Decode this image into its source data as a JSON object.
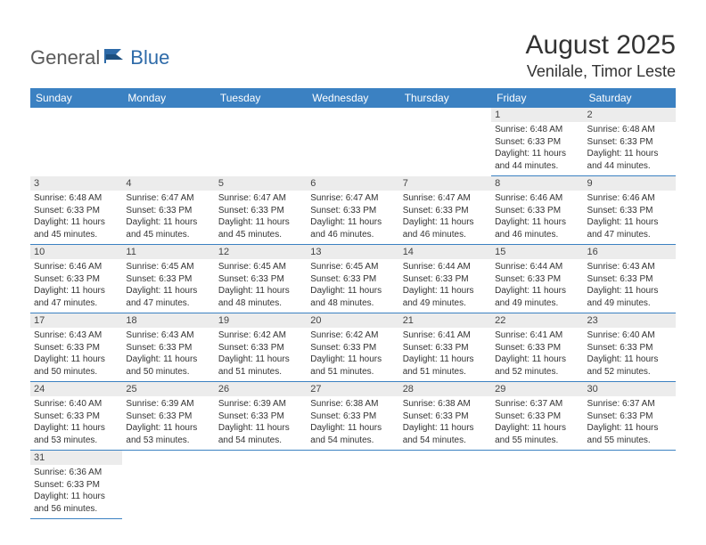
{
  "brand": {
    "part1": "General",
    "part2": "Blue"
  },
  "title": "August 2025",
  "location": "Venilale, Timor Leste",
  "headerColor": "#3b81c2",
  "dayHeaderBg": "#ececec",
  "days": [
    "Sunday",
    "Monday",
    "Tuesday",
    "Wednesday",
    "Thursday",
    "Friday",
    "Saturday"
  ],
  "weeks": [
    [
      {
        "n": "",
        "sr": "",
        "ss": "",
        "dl": ""
      },
      {
        "n": "",
        "sr": "",
        "ss": "",
        "dl": ""
      },
      {
        "n": "",
        "sr": "",
        "ss": "",
        "dl": ""
      },
      {
        "n": "",
        "sr": "",
        "ss": "",
        "dl": ""
      },
      {
        "n": "",
        "sr": "",
        "ss": "",
        "dl": ""
      },
      {
        "n": "1",
        "sr": "6:48 AM",
        "ss": "6:33 PM",
        "dl": "11 hours and 44 minutes."
      },
      {
        "n": "2",
        "sr": "6:48 AM",
        "ss": "6:33 PM",
        "dl": "11 hours and 44 minutes."
      }
    ],
    [
      {
        "n": "3",
        "sr": "6:48 AM",
        "ss": "6:33 PM",
        "dl": "11 hours and 45 minutes."
      },
      {
        "n": "4",
        "sr": "6:47 AM",
        "ss": "6:33 PM",
        "dl": "11 hours and 45 minutes."
      },
      {
        "n": "5",
        "sr": "6:47 AM",
        "ss": "6:33 PM",
        "dl": "11 hours and 45 minutes."
      },
      {
        "n": "6",
        "sr": "6:47 AM",
        "ss": "6:33 PM",
        "dl": "11 hours and 46 minutes."
      },
      {
        "n": "7",
        "sr": "6:47 AM",
        "ss": "6:33 PM",
        "dl": "11 hours and 46 minutes."
      },
      {
        "n": "8",
        "sr": "6:46 AM",
        "ss": "6:33 PM",
        "dl": "11 hours and 46 minutes."
      },
      {
        "n": "9",
        "sr": "6:46 AM",
        "ss": "6:33 PM",
        "dl": "11 hours and 47 minutes."
      }
    ],
    [
      {
        "n": "10",
        "sr": "6:46 AM",
        "ss": "6:33 PM",
        "dl": "11 hours and 47 minutes."
      },
      {
        "n": "11",
        "sr": "6:45 AM",
        "ss": "6:33 PM",
        "dl": "11 hours and 47 minutes."
      },
      {
        "n": "12",
        "sr": "6:45 AM",
        "ss": "6:33 PM",
        "dl": "11 hours and 48 minutes."
      },
      {
        "n": "13",
        "sr": "6:45 AM",
        "ss": "6:33 PM",
        "dl": "11 hours and 48 minutes."
      },
      {
        "n": "14",
        "sr": "6:44 AM",
        "ss": "6:33 PM",
        "dl": "11 hours and 49 minutes."
      },
      {
        "n": "15",
        "sr": "6:44 AM",
        "ss": "6:33 PM",
        "dl": "11 hours and 49 minutes."
      },
      {
        "n": "16",
        "sr": "6:43 AM",
        "ss": "6:33 PM",
        "dl": "11 hours and 49 minutes."
      }
    ],
    [
      {
        "n": "17",
        "sr": "6:43 AM",
        "ss": "6:33 PM",
        "dl": "11 hours and 50 minutes."
      },
      {
        "n": "18",
        "sr": "6:43 AM",
        "ss": "6:33 PM",
        "dl": "11 hours and 50 minutes."
      },
      {
        "n": "19",
        "sr": "6:42 AM",
        "ss": "6:33 PM",
        "dl": "11 hours and 51 minutes."
      },
      {
        "n": "20",
        "sr": "6:42 AM",
        "ss": "6:33 PM",
        "dl": "11 hours and 51 minutes."
      },
      {
        "n": "21",
        "sr": "6:41 AM",
        "ss": "6:33 PM",
        "dl": "11 hours and 51 minutes."
      },
      {
        "n": "22",
        "sr": "6:41 AM",
        "ss": "6:33 PM",
        "dl": "11 hours and 52 minutes."
      },
      {
        "n": "23",
        "sr": "6:40 AM",
        "ss": "6:33 PM",
        "dl": "11 hours and 52 minutes."
      }
    ],
    [
      {
        "n": "24",
        "sr": "6:40 AM",
        "ss": "6:33 PM",
        "dl": "11 hours and 53 minutes."
      },
      {
        "n": "25",
        "sr": "6:39 AM",
        "ss": "6:33 PM",
        "dl": "11 hours and 53 minutes."
      },
      {
        "n": "26",
        "sr": "6:39 AM",
        "ss": "6:33 PM",
        "dl": "11 hours and 54 minutes."
      },
      {
        "n": "27",
        "sr": "6:38 AM",
        "ss": "6:33 PM",
        "dl": "11 hours and 54 minutes."
      },
      {
        "n": "28",
        "sr": "6:38 AM",
        "ss": "6:33 PM",
        "dl": "11 hours and 54 minutes."
      },
      {
        "n": "29",
        "sr": "6:37 AM",
        "ss": "6:33 PM",
        "dl": "11 hours and 55 minutes."
      },
      {
        "n": "30",
        "sr": "6:37 AM",
        "ss": "6:33 PM",
        "dl": "11 hours and 55 minutes."
      }
    ],
    [
      {
        "n": "31",
        "sr": "6:36 AM",
        "ss": "6:33 PM",
        "dl": "11 hours and 56 minutes."
      },
      {
        "n": "",
        "sr": "",
        "ss": "",
        "dl": ""
      },
      {
        "n": "",
        "sr": "",
        "ss": "",
        "dl": ""
      },
      {
        "n": "",
        "sr": "",
        "ss": "",
        "dl": ""
      },
      {
        "n": "",
        "sr": "",
        "ss": "",
        "dl": ""
      },
      {
        "n": "",
        "sr": "",
        "ss": "",
        "dl": ""
      },
      {
        "n": "",
        "sr": "",
        "ss": "",
        "dl": ""
      }
    ]
  ],
  "labels": {
    "sunrise": "Sunrise:",
    "sunset": "Sunset:",
    "daylight": "Daylight:"
  }
}
